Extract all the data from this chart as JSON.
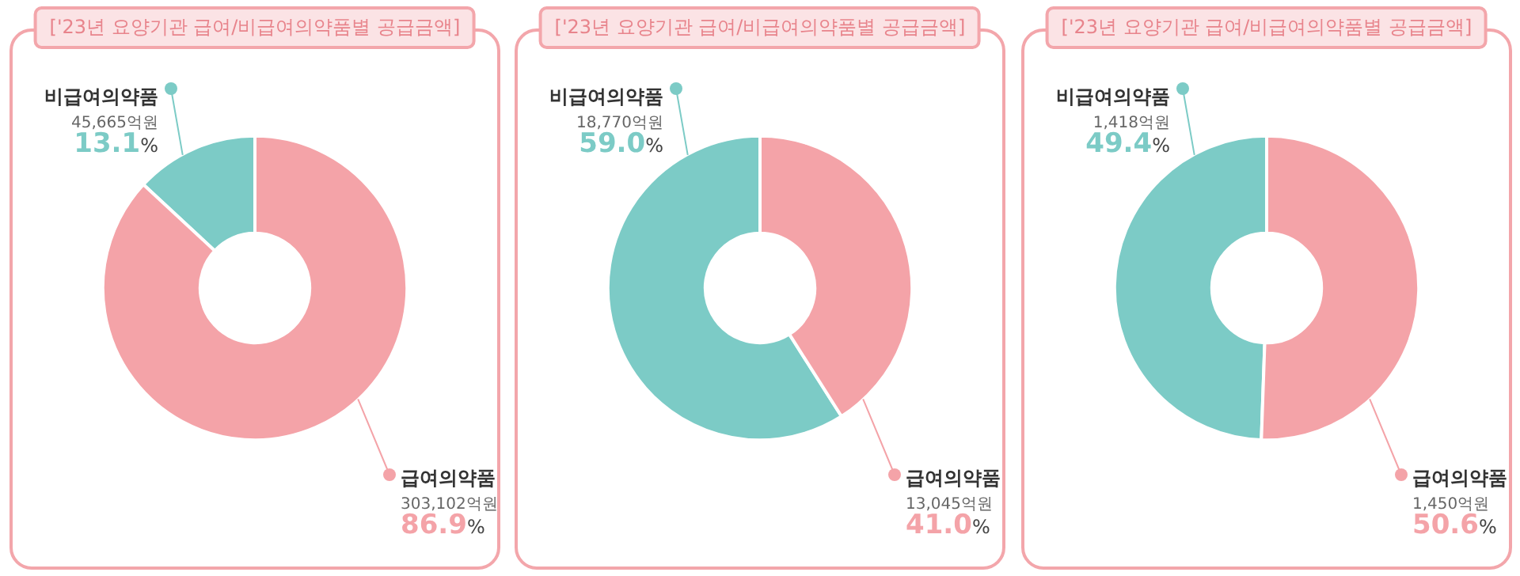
{
  "chart_data": [
    {
      "type": "donut",
      "title": "['23년 요양기관 급여/비급여의약품별 공급금액]",
      "categories": [
        "비급여의약품",
        "급여의약품"
      ],
      "values": [
        45665,
        303102
      ],
      "colors": [
        "#7ccbc6",
        "#f4a3a8"
      ],
      "value_labels": [
        "45,665억원\n13.1%",
        "303,102억원\n86.9%"
      ]
    },
    {
      "type": "donut",
      "title": "['23년 요양기관 급여/비급여의약품별 공급금액]",
      "categories": [
        "비급여의약품",
        "급여의약품"
      ],
      "values": [
        18770,
        13045
      ],
      "colors": [
        "#7ccbc6",
        "#f4a3a8"
      ],
      "value_labels": [
        "18,770억원\n59.0%",
        "13,045억원\n41.0%"
      ]
    },
    {
      "type": "donut",
      "title": "['23년 요양기관 급여/비급여의약품별 공급금액]",
      "categories": [
        "비급여의약품",
        "급여의약품"
      ],
      "values": [
        1418,
        1450
      ],
      "colors": [
        "#7ccbc6",
        "#f4a3a8"
      ],
      "value_labels": [
        "1,418억원\n49.4%",
        "1,450억원\n50.6%"
      ]
    }
  ]
}
